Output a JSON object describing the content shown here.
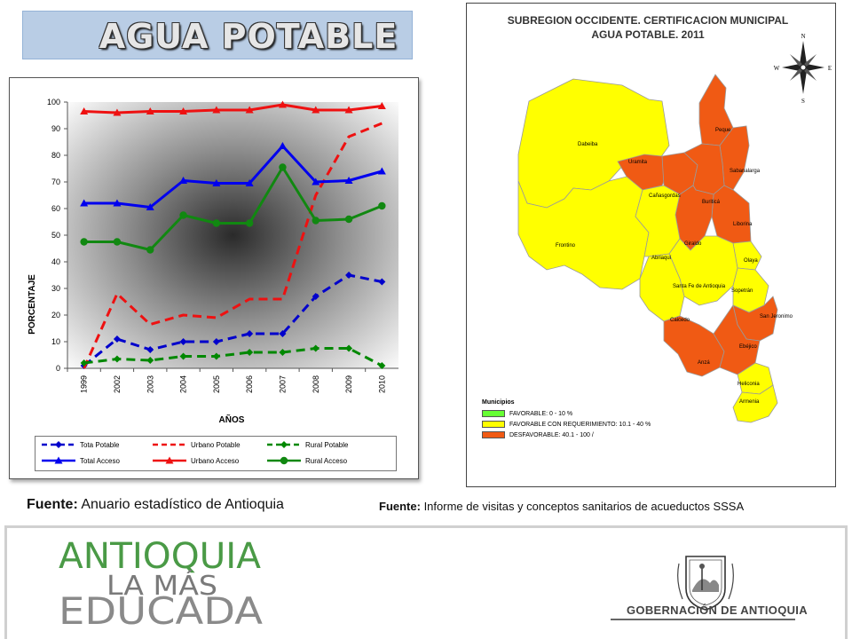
{
  "page_title": "AGUA POTABLE",
  "chart_data": {
    "type": "line",
    "categories": [
      "1999",
      "2002",
      "2003",
      "2004",
      "2005",
      "2006",
      "2007",
      "2008",
      "2009",
      "2010"
    ],
    "series": [
      {
        "name": "Tota Potable",
        "values": [
          1,
          11,
          7,
          10,
          10,
          13,
          13,
          27,
          35,
          32.5
        ],
        "color": "#0000cc",
        "dash": true,
        "marker": "diamond"
      },
      {
        "name": "Urbano Potable",
        "values": [
          0,
          28,
          16.5,
          20,
          19,
          26,
          26,
          65,
          87,
          92
        ],
        "color": "#ee1111",
        "dash": true,
        "marker": "none"
      },
      {
        "name": "Rural Potable",
        "values": [
          2,
          3.5,
          3,
          4.5,
          4.5,
          6,
          6,
          7.5,
          7.5,
          1
        ],
        "color": "#008800",
        "dash": true,
        "marker": "diamond"
      },
      {
        "name": "Total Acceso",
        "values": [
          62,
          62,
          60.5,
          70.5,
          69.5,
          69.5,
          83.5,
          70,
          70.5,
          74
        ],
        "color": "#0000ee",
        "dash": false,
        "marker": "triangle"
      },
      {
        "name": "Urbano Acceso",
        "values": [
          96.5,
          96,
          96.5,
          96.5,
          97,
          97,
          99,
          97,
          97,
          98.5
        ],
        "color": "#ee1111",
        "dash": false,
        "marker": "triangle"
      },
      {
        "name": "Rural Acceso",
        "values": [
          47.5,
          47.5,
          44.5,
          57.5,
          54.5,
          54.5,
          75.5,
          55.5,
          56,
          61
        ],
        "color": "#118811",
        "dash": false,
        "marker": "circle"
      }
    ],
    "xlabel": "AÑOS",
    "ylabel": "PORCENTAJE",
    "ylim": [
      0,
      100
    ],
    "yticks": [
      "0",
      "10",
      "20",
      "30",
      "40",
      "50",
      "60",
      "70",
      "80",
      "90",
      "100"
    ],
    "legend_placement": "bottom"
  },
  "sources": {
    "left_label": "Fuente:",
    "left_text": " Anuario estadístico de Antioquia",
    "right_label": "Fuente:",
    "right_text": " Informe de visitas y conceptos sanitarios de acueductos SSSA"
  },
  "map": {
    "title_line1": "SUBREGION OCCIDENTE. CERTIFICACION MUNICIPAL",
    "title_line2": "AGUA POTABLE.  2011",
    "compass": {
      "n": "N",
      "s": "S",
      "e": "E",
      "w": "W"
    },
    "municipalities": [
      {
        "name": "Dabeiba",
        "color": "#ffff00"
      },
      {
        "name": "Peque",
        "color": "#f05a14"
      },
      {
        "name": "Uramita",
        "color": "#f05a14"
      },
      {
        "name": "Sabanalarga",
        "color": "#f05a14"
      },
      {
        "name": "Cañasgordas",
        "color": "#f05a14"
      },
      {
        "name": "Buriticá",
        "color": "#f05a14"
      },
      {
        "name": "Liborina",
        "color": "#f05a14"
      },
      {
        "name": "Giraldo",
        "color": "#f05a14"
      },
      {
        "name": "Frontino",
        "color": "#ffff00"
      },
      {
        "name": "Abriaquí",
        "color": "#ffff00"
      },
      {
        "name": "Olaya",
        "color": "#ffff00"
      },
      {
        "name": "Santa Fe de Antioquia",
        "color": "#ffff00"
      },
      {
        "name": "Sopetrán",
        "color": "#ffff00"
      },
      {
        "name": "Caicedo",
        "color": "#ffff00"
      },
      {
        "name": "San Jeronimo",
        "color": "#f05a14"
      },
      {
        "name": "Anzá",
        "color": "#f05a14"
      },
      {
        "name": "Ebéjico",
        "color": "#f05a14"
      },
      {
        "name": "Heliconia",
        "color": "#ffff00"
      },
      {
        "name": "Armenia",
        "color": "#ffff00"
      }
    ],
    "legend_title": "Municipios",
    "legend": [
      {
        "label": "FAVORABLE: 0 - 10 %",
        "color": "#66ff33"
      },
      {
        "label": "FAVORABLE CON REQUERIMIENTO: 10.1 - 40 %",
        "color": "#ffff00"
      },
      {
        "label": "DESFAVORABLE: 40.1 - 100 /",
        "color": "#f05a14"
      }
    ]
  },
  "banner": {
    "line1": "ANTIOQUIA",
    "line2": "LA MÁS",
    "line3": "EDUCADA",
    "gob_text": "GOBERNACIÓN DE ANTIOQUIA",
    "colors": {
      "green": "#4a9a46",
      "gray": "#8a8a8a"
    }
  }
}
